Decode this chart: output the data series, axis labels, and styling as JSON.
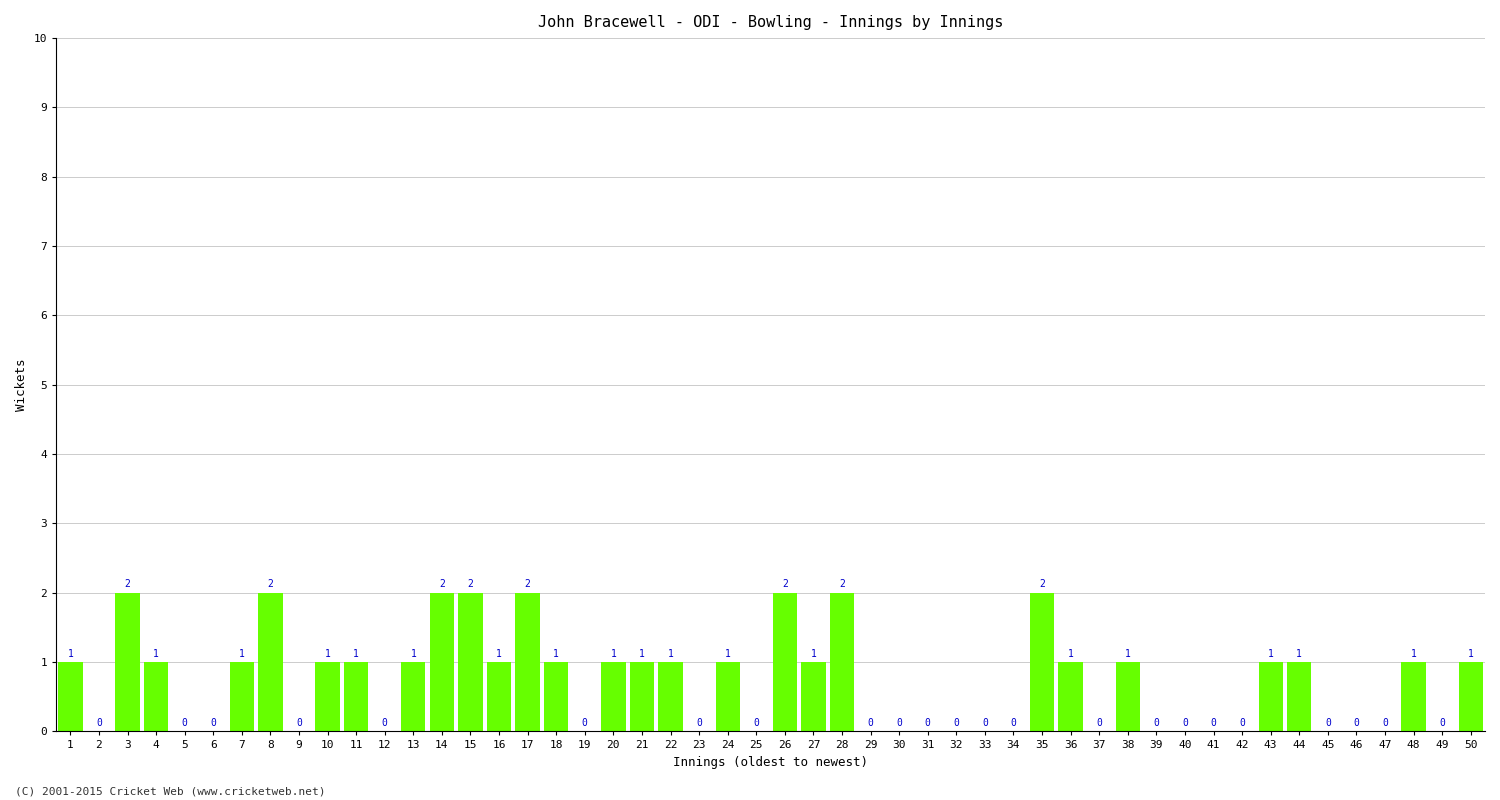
{
  "title": "John Bracewell - ODI - Bowling - Innings by Innings",
  "xlabel": "Innings (oldest to newest)",
  "ylabel": "Wickets",
  "background_color": "#ffffff",
  "bar_color": "#66ff00",
  "label_color": "#0000cc",
  "grid_color": "#cccccc",
  "ylim": [
    0,
    10
  ],
  "yticks": [
    0,
    1,
    2,
    3,
    4,
    5,
    6,
    7,
    8,
    9,
    10
  ],
  "innings": [
    1,
    2,
    3,
    4,
    5,
    6,
    7,
    8,
    9,
    10,
    11,
    12,
    13,
    14,
    15,
    16,
    17,
    18,
    19,
    20,
    21,
    22,
    23,
    24,
    25,
    26,
    27,
    28,
    29,
    30,
    31,
    32,
    33,
    34,
    35,
    36,
    37,
    38,
    39,
    40,
    41,
    42,
    43,
    44,
    45,
    46,
    47,
    48,
    49,
    50
  ],
  "wickets": [
    1,
    0,
    2,
    1,
    0,
    0,
    1,
    2,
    0,
    1,
    1,
    0,
    1,
    2,
    2,
    1,
    2,
    1,
    0,
    1,
    1,
    1,
    0,
    1,
    0,
    2,
    1,
    2,
    0,
    0,
    0,
    0,
    0,
    0,
    2,
    1,
    0,
    1,
    0,
    0,
    0,
    0,
    1,
    1,
    0,
    0,
    0,
    1,
    0,
    1
  ],
  "footer": "(C) 2001-2015 Cricket Web (www.cricketweb.net)",
  "title_fontsize": 11,
  "axis_fontsize": 9,
  "tick_fontsize": 8,
  "label_fontsize": 7,
  "footer_fontsize": 8,
  "bar_width": 0.85
}
